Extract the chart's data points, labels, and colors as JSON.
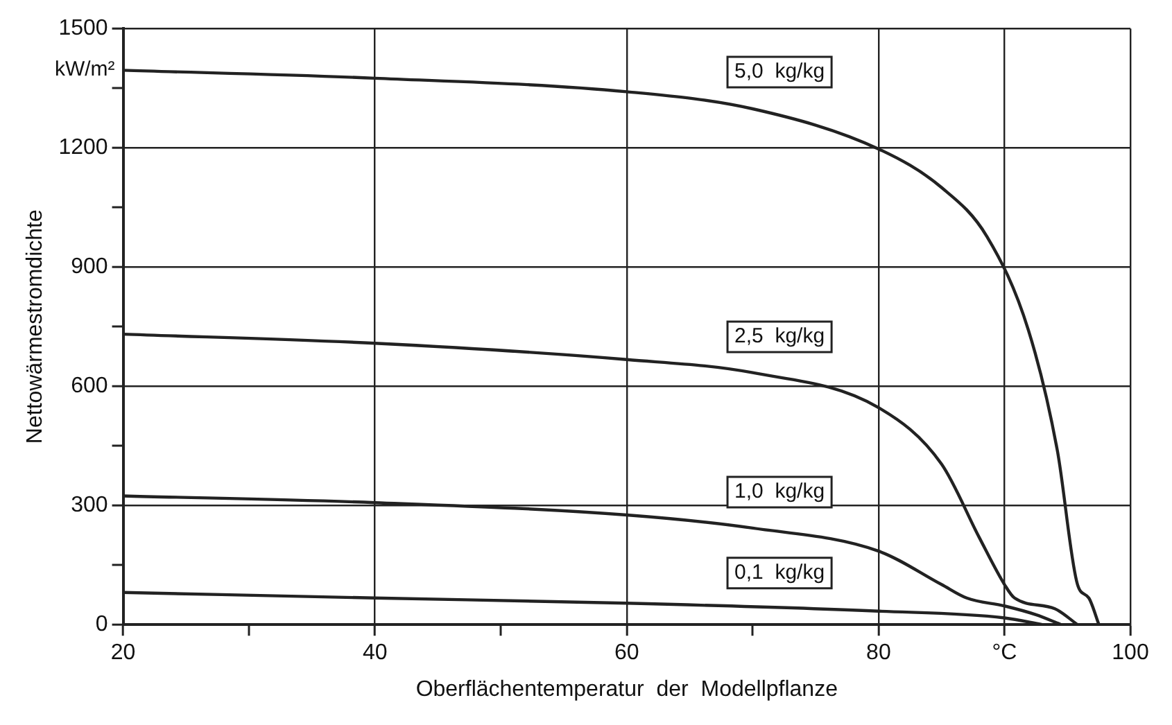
{
  "chart_data": {
    "type": "line",
    "xlabel": "Oberflächentemperatur  der  Modellpflanze",
    "ylabel": "Nettowärmestromdichte",
    "annotations": [
      "kW/m²"
    ],
    "xlim": [
      20,
      100
    ],
    "xticks": [
      20,
      {
        "value": 30,
        "label": null
      },
      40,
      {
        "value": 50,
        "label": null
      },
      60,
      {
        "value": 70,
        "label": null
      },
      80,
      {
        "value": 90,
        "label": "°C"
      },
      100
    ],
    "ylim": [
      0,
      1500
    ],
    "yticks": [
      0,
      {
        "value": 150,
        "label": null
      },
      300,
      {
        "value": 450,
        "label": null
      },
      600,
      {
        "value": 750,
        "label": null
      },
      900,
      {
        "value": 1050,
        "label": null
      },
      1200,
      {
        "value": 1350,
        "label": null
      },
      1500
    ],
    "grid": true,
    "legend": false,
    "marker": "none",
    "line_style": "solid",
    "series": [
      {
        "name": "5,0  kg/kg",
        "color": "#222222",
        "x": [
          20,
          40,
          60,
          70,
          80,
          85,
          88.6,
          91.9,
          94.2,
          95.8,
          96.7,
          97.5
        ],
        "values": [
          1395,
          1375,
          1341,
          1298,
          1197,
          1100,
          977,
          741,
          438,
          101,
          67,
          0
        ]
      },
      {
        "name": "2,5  kg/kg",
        "color": "#222222",
        "x": [
          20,
          40,
          60,
          70,
          80,
          85,
          88,
          90,
          90.8,
          94,
          95.8
        ],
        "values": [
          731,
          708,
          667,
          634,
          546,
          404,
          219,
          101,
          67,
          40,
          0
        ]
      },
      {
        "name": "1,0  kg/kg",
        "color": "#222222",
        "x": [
          20,
          40,
          60,
          70,
          80,
          85,
          87,
          90,
          92.5,
          94.5
        ],
        "values": [
          324,
          307,
          276,
          243,
          185,
          101,
          67,
          47,
          25,
          0
        ]
      },
      {
        "name": "0,1  kg/kg",
        "color": "#222222",
        "x": [
          20,
          40,
          60,
          80,
          90,
          93
        ],
        "values": [
          81,
          67,
          54,
          34,
          17,
          0
        ]
      }
    ]
  }
}
